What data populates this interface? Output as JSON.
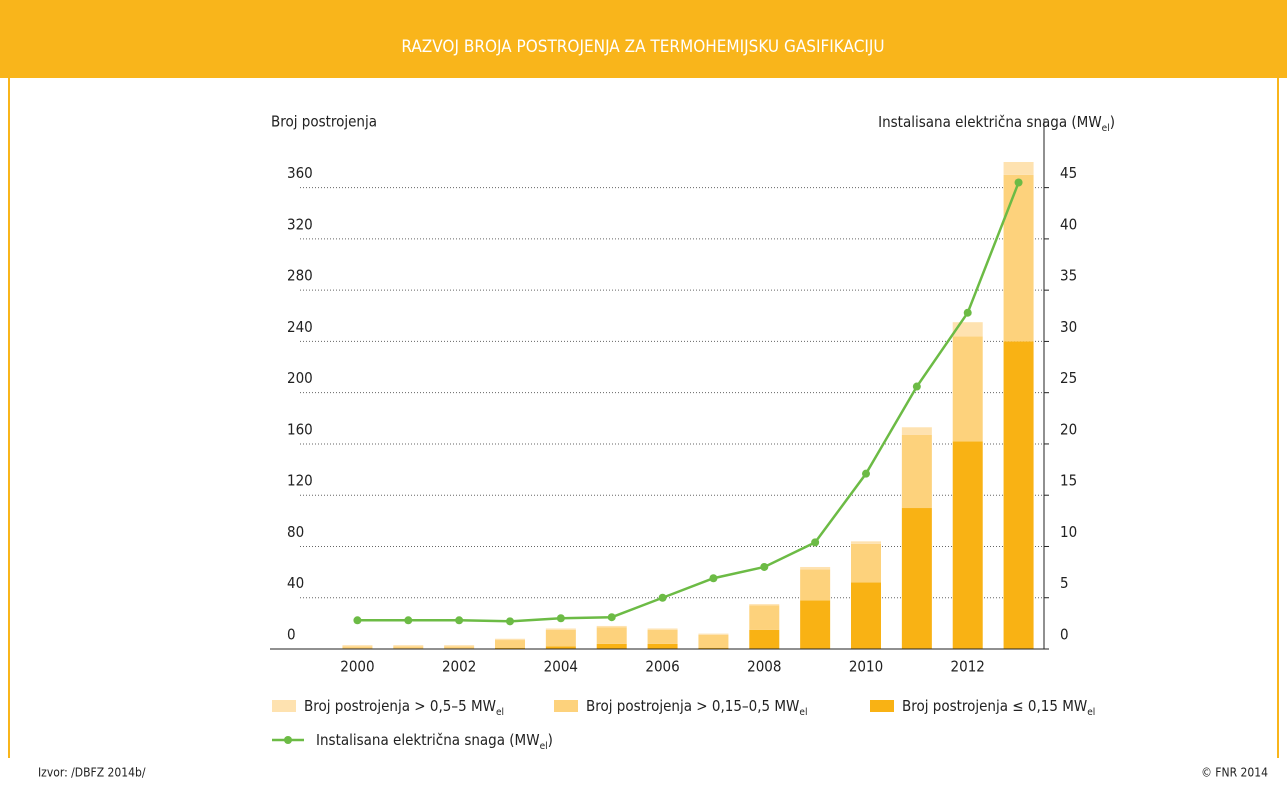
{
  "chart_data": {
    "type": "bar",
    "stacked": true,
    "title": "RAZVOJ BROJA POSTROJENJA ZA TERMOHEMIJSKU GASIFIKACIJU",
    "y_label": "Broj postrojenja",
    "y2_label": {
      "text": "Instalisana električna snaga (MW",
      "sub": "el",
      "after": ")"
    },
    "categories": [
      "2000",
      null,
      "2002",
      null,
      "2004",
      null,
      "2006",
      null,
      "2008",
      null,
      "2010",
      null,
      "2012",
      null
    ],
    "series": [
      {
        "name": "Broj postrojenja ≤ 0,15 MW",
        "name_sub": "el",
        "color": "#f9b214",
        "values": [
          0,
          0,
          0,
          1,
          2,
          4,
          4,
          1,
          15,
          38,
          52,
          110,
          162,
          240
        ]
      },
      {
        "name": "Broj postrojenja > 0,15–0,5 MW",
        "name_sub": "el",
        "color": "#fdd27c",
        "values": [
          2,
          2,
          2,
          6,
          13,
          13,
          11,
          10,
          19,
          24,
          30,
          57,
          82,
          130
        ]
      },
      {
        "name": "Broj postrojenja > 0,5–5 MW",
        "name_sub": "el",
        "color": "#fee2b0",
        "values": [
          1,
          1,
          1,
          1,
          1,
          1,
          1,
          1,
          1,
          2,
          2,
          6,
          11,
          10
        ]
      },
      {
        "name": "Instalisana električna snaga (MW",
        "name_sub": "el",
        "name_after": ")",
        "type": "line",
        "axis": "y2",
        "color": "#6cbb45",
        "values": [
          2.8,
          2.8,
          2.8,
          2.7,
          3.0,
          3.1,
          5.0,
          6.9,
          8.0,
          10.4,
          17.1,
          25.6,
          32.8,
          45.5
        ]
      }
    ],
    "ylim": [
      0,
      380
    ],
    "yticks": [
      0,
      40,
      80,
      120,
      160,
      200,
      240,
      280,
      320,
      360
    ],
    "y2lim": [
      0,
      47.5
    ],
    "y2ticks": [
      0,
      5,
      10,
      15,
      20,
      25,
      30,
      35,
      40,
      45
    ],
    "grid": true,
    "source": "Izvor: /DBFZ 2014b/",
    "credit": "© FNR 2014"
  }
}
